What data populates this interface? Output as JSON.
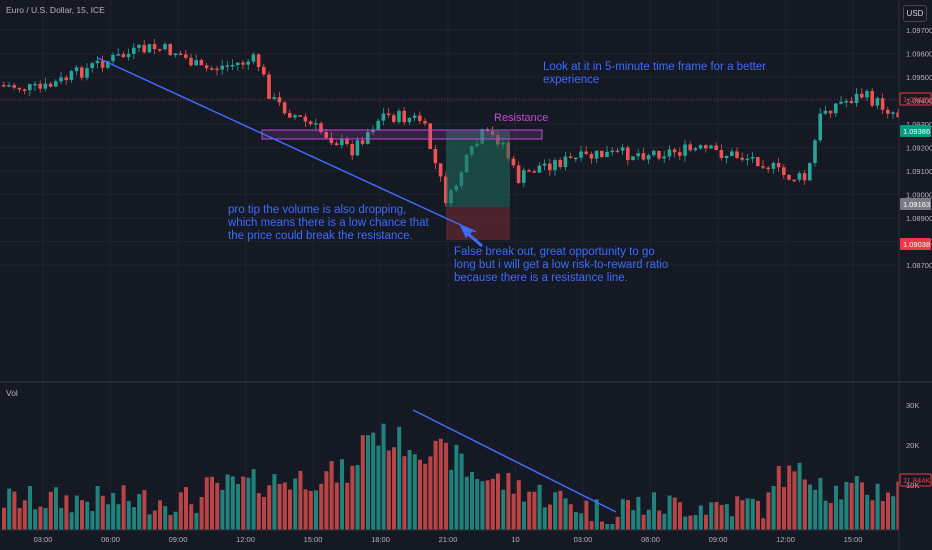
{
  "header": {
    "symbol": "Euro / U.S. Dollar, 15, ICE",
    "currency": "USD"
  },
  "volume_pane": {
    "label": "Vol",
    "current_value": "11.844K",
    "axis_labels": [
      "30K",
      "20K",
      "10K"
    ]
  },
  "price_axis": {
    "tick_labels": [
      "1.09700",
      "1.09600",
      "1.09500",
      "1.09400",
      "1.09300",
      "1.09200",
      "1.09100",
      "1.09000",
      "1.08900",
      "1.08800",
      "1.08700"
    ],
    "markers": [
      {
        "value": "1.09485",
        "color": "#f23645",
        "style": "outline"
      },
      {
        "value": "1.09386",
        "color": "#089981",
        "style": "filled"
      },
      {
        "value": "1.09163",
        "color": "#787b86",
        "style": "filled"
      },
      {
        "value": "1.09038",
        "color": "#f23645",
        "style": "filled"
      }
    ]
  },
  "time_axis": {
    "labels": [
      "03:00",
      "06:00",
      "09:00",
      "12:00",
      "15:00",
      "18:00",
      "21:00",
      "10",
      "03:00",
      "06:00",
      "09:00",
      "12:00",
      "15:00"
    ]
  },
  "annotations": {
    "top_note": "Look at it in 5-minute time frame for a better experience",
    "resistance_label": "Resistance",
    "volume_tip": "pro tip the volume is also dropping, which means there is a low chance that the price could break the resistance.",
    "false_break": "False break out, great opportunity to go long but i will get a low risk-to-reward ratio because there is a resistance line."
  },
  "colors": {
    "up": "#26a69a",
    "down": "#ef5350",
    "trendline": "#3d6bff",
    "resistance": "#c04cd6",
    "background": "#151924"
  }
}
